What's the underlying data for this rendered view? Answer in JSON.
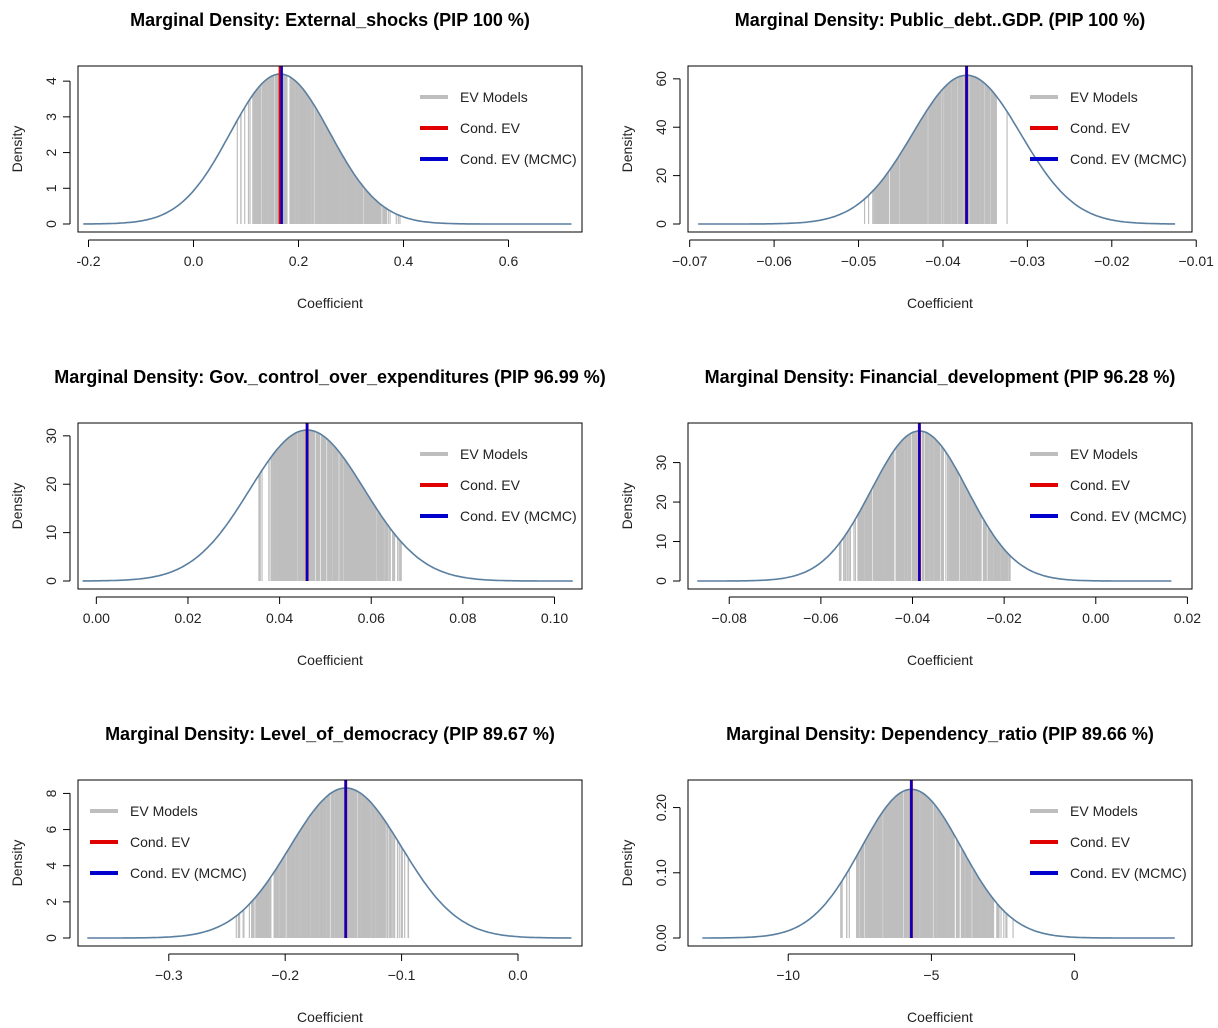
{
  "chart_data": [
    {
      "type": "area",
      "title": "Marginal Density: External_shocks (PIP 100 %)",
      "xlabel": "Coefficient",
      "ylabel": "Density",
      "xlim": [
        -0.22,
        0.74
      ],
      "ylim": [
        0,
        4.2
      ],
      "xticks": [
        -0.2,
        0.0,
        0.2,
        0.4,
        0.6
      ],
      "xtick_labels": [
        "-0.2",
        "0.0",
        "0.2",
        "0.4",
        "0.6"
      ],
      "yticks": [
        0,
        1,
        2,
        3,
        4
      ],
      "ytick_labels": [
        "0",
        "1",
        "2",
        "3",
        "4"
      ],
      "density": {
        "mean": 0.165,
        "sd": 0.095,
        "peak": 4.2,
        "range": [
          -0.21,
          0.72
        ]
      },
      "ev_models_range": [
        0.08,
        0.4
      ],
      "cond_ev": 0.165,
      "cond_ev_mcmc": 0.168,
      "legend_position": "top-right",
      "legend": [
        "EV Models",
        "Cond. EV",
        "Cond. EV (MCMC)"
      ]
    },
    {
      "type": "area",
      "title": "Marginal Density: Public_debt..GDP. (PIP 100 %)",
      "xlabel": "Coefficient",
      "ylabel": "Density",
      "xlim": [
        -0.0702,
        -0.0105
      ],
      "ylim": [
        0,
        62
      ],
      "xticks": [
        -0.07,
        -0.06,
        -0.05,
        -0.04,
        -0.03,
        -0.02,
        -0.01
      ],
      "xtick_labels": [
        "−0.07",
        "−0.06",
        "−0.05",
        "−0.04",
        "−0.03",
        "−0.02",
        "−0.01"
      ],
      "yticks": [
        0,
        20,
        40,
        60
      ],
      "ytick_labels": [
        "0",
        "20",
        "40",
        "60"
      ],
      "density": {
        "mean": -0.0372,
        "sd": 0.0064,
        "peak": 61.5,
        "range": [
          -0.069,
          -0.0125
        ]
      },
      "ev_models_range": [
        -0.05,
        -0.0318
      ],
      "cond_ev": -0.0372,
      "cond_ev_mcmc": -0.0372,
      "legend_position": "top-right",
      "legend": [
        "EV Models",
        "Cond. EV",
        "Cond. EV (MCMC)"
      ]
    },
    {
      "type": "area",
      "title": "Marginal Density: Gov._control_over_expenditures (PIP 96.99 %)",
      "xlabel": "Coefficient",
      "ylabel": "Density",
      "xlim": [
        -0.004,
        0.106
      ],
      "ylim": [
        0,
        31
      ],
      "xticks": [
        0.0,
        0.02,
        0.04,
        0.06,
        0.08,
        0.1
      ],
      "xtick_labels": [
        "0.00",
        "0.02",
        "0.04",
        "0.06",
        "0.08",
        "0.10"
      ],
      "yticks": [
        0,
        10,
        20,
        30
      ],
      "ytick_labels": [
        "0",
        "10",
        "20",
        "30"
      ],
      "density": {
        "mean": 0.046,
        "sd": 0.0125,
        "peak": 31.2,
        "range": [
          -0.003,
          0.104
        ]
      },
      "ev_models_range": [
        0.035,
        0.067
      ],
      "cond_ev": 0.046,
      "cond_ev_mcmc": 0.046,
      "legend_position": "top-right",
      "legend": [
        "EV Models",
        "Cond. EV",
        "Cond. EV (MCMC)"
      ]
    },
    {
      "type": "area",
      "title": "Marginal Density: Financial_development (PIP 96.28 %)",
      "xlabel": "Coefficient",
      "ylabel": "Density",
      "xlim": [
        -0.089,
        0.021
      ],
      "ylim": [
        0,
        38
      ],
      "xticks": [
        -0.08,
        -0.06,
        -0.04,
        -0.02,
        0.0,
        0.02
      ],
      "xtick_labels": [
        "−0.08",
        "−0.06",
        "−0.04",
        "−0.02",
        "0.00",
        "0.02"
      ],
      "yticks": [
        0,
        10,
        20,
        30
      ],
      "ytick_labels": [
        "0",
        "10",
        "20",
        "30"
      ],
      "density": {
        "mean": -0.0385,
        "sd": 0.0105,
        "peak": 38,
        "range": [
          -0.087,
          0.0165
        ]
      },
      "ev_models_range": [
        -0.056,
        -0.015
      ],
      "cond_ev": -0.0385,
      "cond_ev_mcmc": -0.0385,
      "legend_position": "top-right",
      "legend": [
        "EV Models",
        "Cond. EV",
        "Cond. EV (MCMC)"
      ]
    },
    {
      "type": "area",
      "title": "Marginal Density: Level_of_democracy (PIP 89.67 %)",
      "xlabel": "Coefficient",
      "ylabel": "Density",
      "xlim": [
        -0.378,
        0.055
      ],
      "ylim": [
        0,
        8.3
      ],
      "xticks": [
        -0.3,
        -0.2,
        -0.1,
        0.0
      ],
      "xtick_labels": [
        "−0.3",
        "−0.2",
        "−0.1",
        "0.0"
      ],
      "yticks": [
        0,
        2,
        4,
        6,
        8
      ],
      "ytick_labels": [
        "0",
        "2",
        "4",
        "6",
        "8"
      ],
      "density": {
        "mean": -0.148,
        "sd": 0.048,
        "peak": 8.3,
        "range": [
          -0.37,
          0.046
        ]
      },
      "ev_models_range": [
        -0.245,
        -0.09
      ],
      "cond_ev": -0.148,
      "cond_ev_mcmc": -0.148,
      "legend_position": "top-left",
      "legend": [
        "EV Models",
        "Cond. EV",
        "Cond. EV (MCMC)"
      ]
    },
    {
      "type": "area",
      "title": "Marginal Density: Dependency_ratio (PIP 89.66 %)",
      "xlabel": "Coefficient",
      "ylabel": "Density",
      "xlim": [
        -13.5,
        4.1
      ],
      "ylim": [
        0,
        0.23
      ],
      "xticks": [
        -10,
        -5,
        0
      ],
      "xtick_labels": [
        "−10",
        "−5",
        "0"
      ],
      "yticks": [
        0,
        0.1,
        0.2
      ],
      "ytick_labels": [
        "0.00",
        "0.10",
        "0.20"
      ],
      "density": {
        "mean": -5.7,
        "sd": 1.75,
        "peak": 0.228,
        "range": [
          -13.0,
          3.5
        ]
      },
      "ev_models_range": [
        -8.2,
        -2.0
      ],
      "cond_ev": -5.7,
      "cond_ev_mcmc": -5.7,
      "legend_position": "top-right",
      "legend": [
        "EV Models",
        "Cond. EV",
        "Cond. EV (MCMC)"
      ]
    }
  ],
  "colors": {
    "ev_models": "#bebebe",
    "cond_ev": "#e00000",
    "cond_ev_mcmc": "#0000cc",
    "density_curve": "#5a7fa0",
    "axis": "#000000"
  }
}
